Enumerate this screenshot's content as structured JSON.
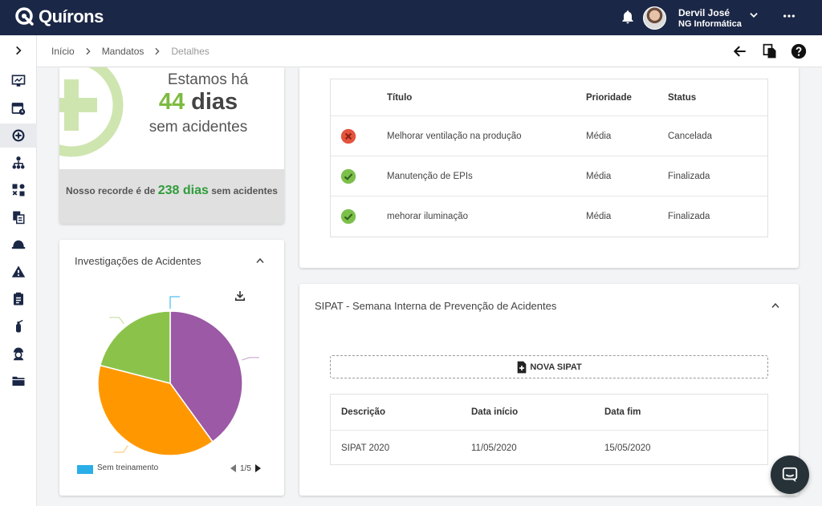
{
  "app": {
    "name": "Quírons"
  },
  "user": {
    "name": "Dervil José",
    "org": "NG Informática"
  },
  "breadcrumb": [
    "Início",
    "Mandatos",
    "Detalhes"
  ],
  "sidebar": {
    "items": [
      {
        "icon": "expand-chevron-icon"
      },
      {
        "icon": "dashboard-icon"
      },
      {
        "icon": "calendar-icon"
      },
      {
        "icon": "plus-circle-icon"
      },
      {
        "icon": "sitemap-icon"
      },
      {
        "icon": "puzzle-icon"
      },
      {
        "icon": "documents-icon"
      },
      {
        "icon": "helmet-icon"
      },
      {
        "icon": "warning-icon"
      },
      {
        "icon": "clipboard-icon"
      },
      {
        "icon": "fire-extinguisher-icon"
      },
      {
        "icon": "worker-icon"
      },
      {
        "icon": "folder-icon"
      }
    ]
  },
  "safety": {
    "line1": "Estamos há",
    "days_num": "44",
    "days_unit": " dias",
    "line3": "sem acidentes",
    "record_prefix": "Nosso recorde é de ",
    "record_value": "238 dias",
    "record_suffix": " sem acidentes"
  },
  "investigations": {
    "title": "Investigações de Acidentes",
    "legend": "Sem treinamento",
    "page": "1/5",
    "colors": [
      "#9b59a6",
      "#ff9800",
      "#8bc34a",
      "#29aee8"
    ]
  },
  "chart_data": {
    "type": "pie",
    "values": [
      40,
      39,
      21,
      0
    ],
    "colors": [
      "#9b59a6",
      "#ff9800",
      "#8bc34a",
      "#29aee8"
    ]
  },
  "actions": {
    "headers": {
      "title": "Título",
      "priority": "Prioridade",
      "status": "Status"
    },
    "rows": [
      {
        "icon": "cancel",
        "title": "Melhorar ventilação na produção",
        "priority": "Média",
        "status": "Cancelada"
      },
      {
        "icon": "check",
        "title": "Manutenção de EPIs",
        "priority": "Média",
        "status": "Finalizada"
      },
      {
        "icon": "check",
        "title": "mehorar iluminação",
        "priority": "Média",
        "status": "Finalizada"
      }
    ]
  },
  "sipat": {
    "title": "SIPAT - Semana Interna de Prevenção de Acidentes",
    "new_button": "NOVA SIPAT",
    "headers": {
      "desc": "Descrição",
      "start": "Data início",
      "end": "Data fim"
    },
    "rows": [
      {
        "desc": "SIPAT 2020",
        "start": "11/05/2020",
        "end": "15/05/2020"
      }
    ]
  }
}
